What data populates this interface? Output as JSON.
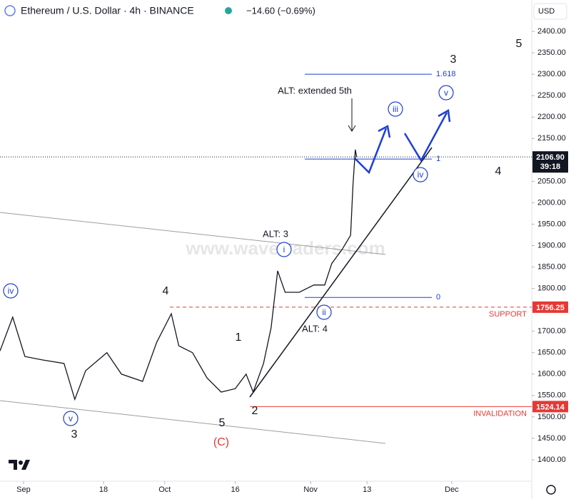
{
  "chart_data": {
    "type": "line",
    "title": "Ethereum / U.S. Dollar · 4h · BINANCE",
    "change": "−14.60 (−0.69%)",
    "currency": "USD",
    "countdown": "39:18",
    "watermark": "www.wavetraders.com",
    "color": "#131722",
    "x": [
      -5,
      -2.3,
      0.3,
      4,
      8.6,
      10.9,
      13.2,
      17.7,
      20.8,
      25.3,
      28.3,
      31.4,
      33,
      35.9,
      39,
      42,
      45,
      47.3,
      48.8,
      51,
      52.6,
      54,
      55.6,
      58.6,
      61.7,
      64,
      65.5,
      67.7,
      69.5,
      70,
      70.5,
      70.8
    ],
    "values": [
      1654,
      1733,
      1641,
      1633,
      1625,
      1541,
      1608,
      1650,
      1600,
      1583,
      1674,
      1741,
      1666,
      1650,
      1591,
      1558,
      1566,
      1600,
      1558,
      1625,
      1708,
      1841,
      1791,
      1791,
      1808,
      1808,
      1858,
      1891,
      1924,
      2040,
      2124,
      2106.9
    ],
    "xlim": [
      -5,
      108
    ],
    "xticks": [
      {
        "value": 0,
        "label": "Sep"
      },
      {
        "value": 17,
        "label": "18"
      },
      {
        "value": 30,
        "label": "Oct"
      },
      {
        "value": 45,
        "label": "16"
      },
      {
        "value": 61,
        "label": "Nov"
      },
      {
        "value": 73,
        "label": "13"
      },
      {
        "value": 91,
        "label": "Dec"
      }
    ],
    "ylim": [
      1350,
      2470
    ],
    "yticks": [
      {
        "value": 1400,
        "label": "1400.00"
      },
      {
        "value": 1450,
        "label": "1450.00"
      },
      {
        "value": 1500,
        "label": "1500.00"
      },
      {
        "value": 1550,
        "label": "1550.00"
      },
      {
        "value": 1600,
        "label": "1600.00"
      },
      {
        "value": 1650,
        "label": "1650.00"
      },
      {
        "value": 1700,
        "label": "1700.00"
      },
      {
        "value": 1750,
        "label": "1750.00"
      },
      {
        "value": 1800,
        "label": "1800.00"
      },
      {
        "value": 1850,
        "label": "1850.00"
      },
      {
        "value": 1900,
        "label": "1900.00"
      },
      {
        "value": 1950,
        "label": "1950.00"
      },
      {
        "value": 2000,
        "label": "2000.00"
      },
      {
        "value": 2050,
        "label": "2050.00"
      },
      {
        "value": 2100,
        "label": "2100.00"
      },
      {
        "value": 2150,
        "label": "2150.00"
      },
      {
        "value": 2200,
        "label": "2200.00"
      },
      {
        "value": 2250,
        "label": "2250.00"
      },
      {
        "value": 2300,
        "label": "2300.00"
      },
      {
        "value": 2350,
        "label": "2350.00"
      },
      {
        "value": 2400,
        "label": "2400.00"
      }
    ],
    "current_price": 2106.9,
    "current_price_label": "2106.90",
    "levels": [
      {
        "name": "SUPPORT",
        "value": 1756.25,
        "color": "#e53935"
      },
      {
        "name": "INVALIDATION",
        "value": 1524.14,
        "color": "#e53935"
      }
    ],
    "fib_levels": [
      {
        "ratio": 0,
        "price": 1779
      },
      {
        "ratio": 1,
        "price": 2102
      },
      {
        "ratio": 1.618,
        "price": 2300
      }
    ],
    "annotations": [
      "ALT: extended 5th",
      "ALT: 3",
      "ALT: 4",
      "iv",
      "v",
      "3",
      "4",
      "1",
      "5",
      "(C)",
      "2",
      "i",
      "ii",
      "iii",
      "iv",
      "v",
      "3",
      "4",
      "5"
    ]
  }
}
